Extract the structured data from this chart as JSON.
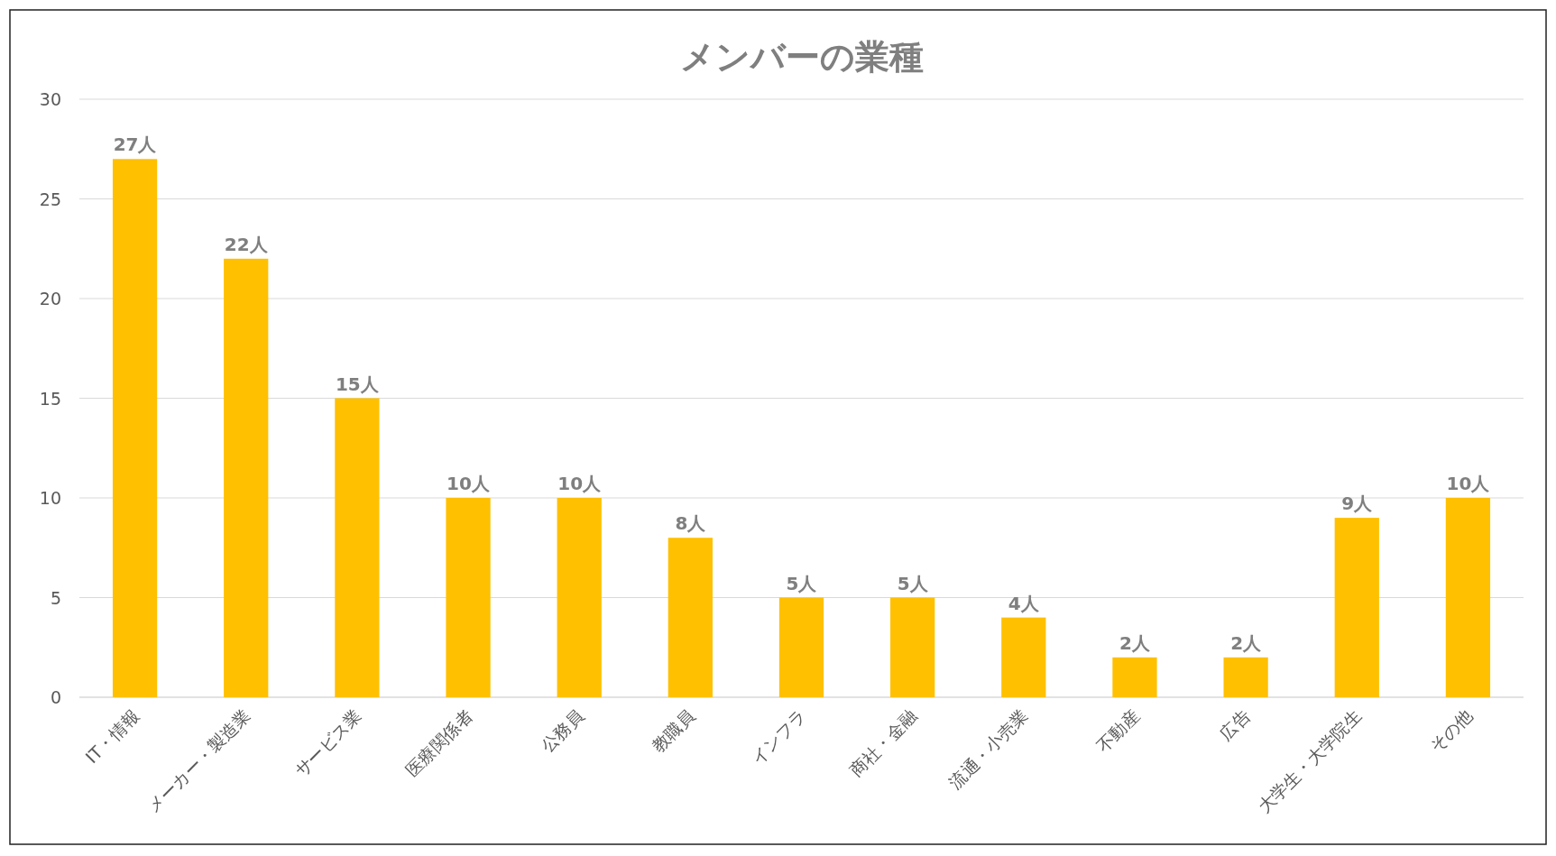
{
  "chart_data": {
    "type": "bar",
    "title": "メンバーの業種",
    "categories": [
      "IT・情報",
      "メーカー・製造業",
      "サービス業",
      "医療関係者",
      "公務員",
      "教職員",
      "インフラ",
      "商社・金融",
      "流通・小売業",
      "不動産",
      "広告",
      "大学生・大学院生",
      "その他"
    ],
    "values": [
      27,
      22,
      15,
      10,
      10,
      8,
      5,
      5,
      4,
      2,
      2,
      9,
      10
    ],
    "value_labels": [
      "27人",
      "22人",
      "15人",
      "10人",
      "10人",
      "8人",
      "5人",
      "5人",
      "4人",
      "2人",
      "2人",
      "9人",
      "10人"
    ],
    "color": "#ffc000",
    "ylim": [
      0,
      30
    ],
    "yticks": [
      0,
      5,
      10,
      15,
      20,
      25,
      30
    ],
    "grid": "y"
  }
}
